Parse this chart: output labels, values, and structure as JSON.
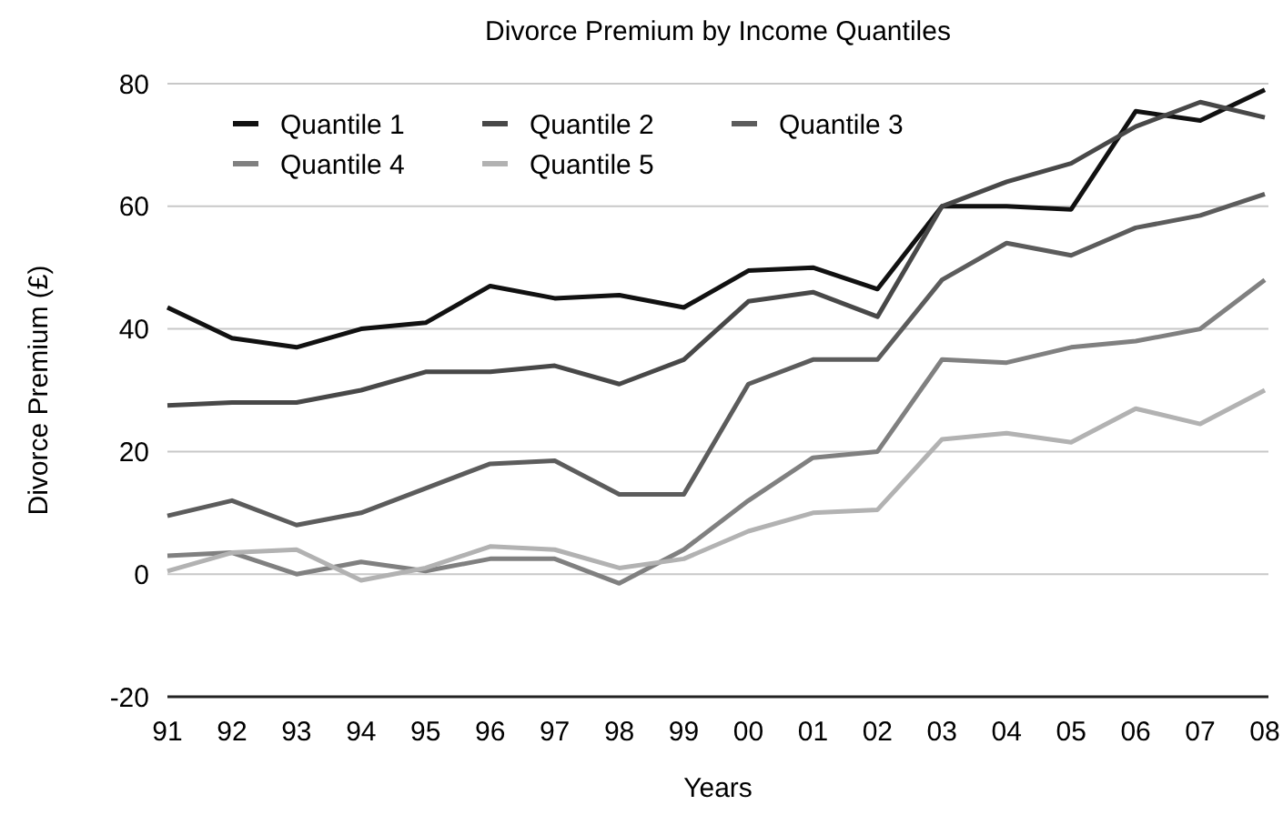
{
  "chart_data": {
    "type": "line",
    "title": "Divorce Premium by Income Quantiles",
    "xlabel": "Years",
    "ylabel": "Divorce Premium (£)",
    "categories": [
      "91",
      "92",
      "93",
      "94",
      "95",
      "96",
      "97",
      "98",
      "99",
      "00",
      "01",
      "02",
      "03",
      "04",
      "05",
      "06",
      "07",
      "08"
    ],
    "series": [
      {
        "name": "Quantile 1",
        "color": "#111111",
        "values": [
          43.5,
          38.5,
          37,
          40,
          41,
          47,
          45,
          45.5,
          43.5,
          49.5,
          50,
          46.5,
          60,
          60,
          59.5,
          75.5,
          74,
          79
        ]
      },
      {
        "name": "Quantile 2",
        "color": "#484848",
        "values": [
          27.5,
          28,
          28,
          30,
          33,
          33,
          34,
          31,
          35,
          44.5,
          46,
          42,
          60,
          64,
          67,
          73,
          77,
          74.5
        ]
      },
      {
        "name": "Quantile 3",
        "color": "#5c5c5c",
        "values": [
          9.5,
          12,
          8,
          10,
          14,
          18,
          18.5,
          13,
          13,
          31,
          35,
          35,
          48,
          54,
          52,
          56.5,
          58.5,
          62
        ]
      },
      {
        "name": "Quantile 4",
        "color": "#808080",
        "values": [
          3,
          3.5,
          0,
          2,
          0.5,
          2.5,
          2.5,
          -1.5,
          4,
          12,
          19,
          20,
          35,
          34.5,
          37,
          38,
          40,
          48
        ]
      },
      {
        "name": "Quantile 5",
        "color": "#b2b2b2",
        "values": [
          0.5,
          3.5,
          4,
          -1,
          1,
          4.5,
          4,
          1,
          2.5,
          7,
          10,
          10.5,
          22,
          23,
          21.5,
          27,
          24.5,
          30
        ]
      }
    ],
    "ylim": [
      -20,
      80
    ],
    "yticks": [
      -20,
      0,
      20,
      40,
      60,
      80
    ],
    "grid": "y",
    "legend": "top left",
    "marker": "none",
    "line_style": "solid"
  }
}
